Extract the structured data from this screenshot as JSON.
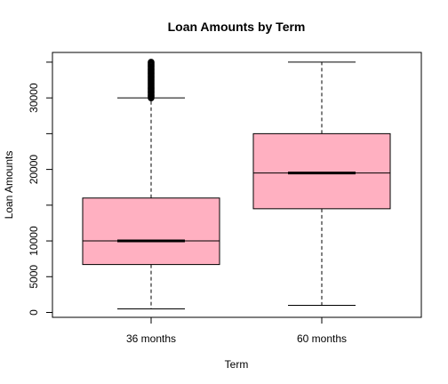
{
  "chart_data": {
    "type": "box",
    "title": "Loan Amounts by Term",
    "xlabel": "Term",
    "ylabel": "Loan Amounts",
    "categories": [
      "36 months",
      "60 months"
    ],
    "ylim": [
      0,
      35000
    ],
    "yticks": [
      0,
      5000,
      10000,
      20000,
      30000
    ],
    "ytick_labels": [
      "0",
      "5000",
      "10000",
      "20000",
      "30000"
    ],
    "grid": false,
    "legend": "none",
    "box_fill": "#ffb0c1",
    "boxes": [
      {
        "category": "36 months",
        "whisker_low": 500,
        "q1": 6700,
        "median": 10000,
        "q3": 16000,
        "whisker_high": 30000,
        "outlier_range": [
          30000,
          35000
        ]
      },
      {
        "category": "60 months",
        "whisker_low": 1000,
        "q1": 14500,
        "median": 19500,
        "q3": 25000,
        "whisker_high": 35000
      }
    ]
  }
}
